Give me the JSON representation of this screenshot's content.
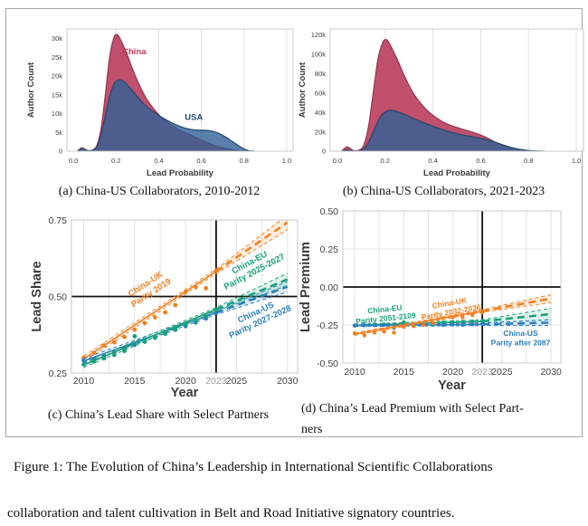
{
  "figure": {
    "caption": "Figure 1: The Evolution of China’s Leadership in International Scientific Collaborations",
    "body_text": "collaboration and talent cultivation in Belt and Road Initiative signatory countries."
  },
  "panels": {
    "a": {
      "caption": "(a) China-US Collaborators, 2010-2012"
    },
    "b": {
      "caption": "(b) China-US Collaborators, 2021-2023"
    },
    "c": {
      "caption": "(c) China’s Lead Share with Select Partners"
    },
    "d": {
      "caption": "(d) China’s Lead Premium with Select Part-\nners"
    }
  },
  "chart_data": [
    {
      "id": "a",
      "type": "area",
      "xlabel": "Lead Probability",
      "ylabel": "Author Count",
      "xlim": [
        -0.03,
        1.03
      ],
      "ylim": [
        0,
        32500
      ],
      "xticks": [
        {
          "v": 0,
          "label": "0.0"
        },
        {
          "v": 0.2,
          "label": "0.2"
        },
        {
          "v": 0.4,
          "label": "0.4"
        },
        {
          "v": 0.6,
          "label": "0.6"
        },
        {
          "v": 0.8,
          "label": "0.8"
        },
        {
          "v": 1,
          "label": "1.0"
        }
      ],
      "yticks": [
        {
          "v": 0,
          "label": "0"
        },
        {
          "v": 5000,
          "label": "5k"
        },
        {
          "v": 10000,
          "label": "10k"
        },
        {
          "v": 15000,
          "label": "15k"
        },
        {
          "v": 20000,
          "label": "20k"
        },
        {
          "v": 25000,
          "label": "25k"
        },
        {
          "v": 30000,
          "label": "30k"
        }
      ],
      "grid_x": [
        0.2,
        0.4,
        0.6,
        0.8,
        1.0
      ],
      "grid_y": [],
      "series": [
        {
          "name": "China",
          "fill": "#c0506b",
          "stroke": "#96354f",
          "x": [
            0.02,
            0.04,
            0.055,
            0.07,
            0.09,
            0.11,
            0.13,
            0.15,
            0.17,
            0.19,
            0.205,
            0.22,
            0.25,
            0.28,
            0.31,
            0.34,
            0.38,
            0.42,
            0.46,
            0.5,
            0.55,
            0.6,
            0.65,
            0.7,
            0.75,
            0.8,
            0.84
          ],
          "y": [
            100,
            900,
            500,
            150,
            300,
            1500,
            6000,
            15000,
            25000,
            30200,
            31000,
            29800,
            26000,
            21500,
            17500,
            14200,
            11000,
            8600,
            6900,
            5600,
            4300,
            3000,
            1800,
            900,
            350,
            80,
            0
          ],
          "label": {
            "text": "China",
            "x": 0.285,
            "y": 25800,
            "color": "#c03a5b"
          }
        },
        {
          "name": "USA",
          "fill": "rgba(47,96,150,0.8)",
          "stroke": "#24476e",
          "x": [
            0.02,
            0.04,
            0.055,
            0.07,
            0.09,
            0.11,
            0.13,
            0.15,
            0.17,
            0.19,
            0.21,
            0.23,
            0.26,
            0.29,
            0.32,
            0.35,
            0.39,
            0.43,
            0.47,
            0.51,
            0.55,
            0.59,
            0.63,
            0.67,
            0.71,
            0.75,
            0.79,
            0.82,
            0.85
          ],
          "y": [
            80,
            700,
            400,
            120,
            250,
            1200,
            4500,
            9500,
            14500,
            17800,
            18900,
            18800,
            17200,
            15200,
            13200,
            11600,
            9900,
            8500,
            7300,
            6400,
            5800,
            5600,
            5500,
            5000,
            3900,
            2400,
            900,
            200,
            0
          ],
          "label": {
            "text": "USA",
            "x": 0.565,
            "y": 8300,
            "color": "#274a79"
          }
        }
      ]
    },
    {
      "id": "b",
      "type": "area",
      "xlabel": "Lead Probability",
      "ylabel": "Author Count",
      "xlim": [
        -0.03,
        1.03
      ],
      "ylim": [
        0,
        126000
      ],
      "xticks": [
        {
          "v": 0,
          "label": "0.0"
        },
        {
          "v": 0.2,
          "label": "0.2"
        },
        {
          "v": 0.4,
          "label": "0.4"
        },
        {
          "v": 0.6,
          "label": "0.6"
        },
        {
          "v": 0.8,
          "label": "0.8"
        },
        {
          "v": 1,
          "label": "1.0"
        }
      ],
      "yticks": [
        {
          "v": 0,
          "label": "0"
        },
        {
          "v": 20000,
          "label": "20k"
        },
        {
          "v": 40000,
          "label": "40k"
        },
        {
          "v": 60000,
          "label": "60k"
        },
        {
          "v": 80000,
          "label": "80k"
        },
        {
          "v": 100000,
          "label": "100k"
        },
        {
          "v": 120000,
          "label": "120k"
        }
      ],
      "grid_x": [
        0.2,
        0.4,
        0.6,
        0.8,
        1.0
      ],
      "grid_y": [],
      "series": [
        {
          "name": "China",
          "fill": "#c0506b",
          "stroke": "#96354f",
          "x": [
            0.02,
            0.04,
            0.055,
            0.07,
            0.09,
            0.11,
            0.13,
            0.15,
            0.17,
            0.19,
            0.205,
            0.22,
            0.25,
            0.28,
            0.31,
            0.34,
            0.38,
            0.42,
            0.46,
            0.5,
            0.54,
            0.58,
            0.62,
            0.66,
            0.7,
            0.74,
            0.78,
            0.82,
            0.86
          ],
          "y": [
            500,
            4500,
            2500,
            600,
            1000,
            6000,
            25000,
            60000,
            95000,
            112000,
            115000,
            110000,
            95000,
            78000,
            63000,
            52000,
            41000,
            33500,
            28000,
            24500,
            21500,
            18500,
            14500,
            9500,
            5500,
            2800,
            1000,
            200,
            0
          ]
        },
        {
          "name": "USA",
          "fill": "rgba(47,96,150,0.8)",
          "stroke": "#24476e",
          "x": [
            0.02,
            0.04,
            0.055,
            0.07,
            0.09,
            0.11,
            0.13,
            0.15,
            0.17,
            0.19,
            0.21,
            0.23,
            0.26,
            0.29,
            0.32,
            0.35,
            0.39,
            0.43,
            0.47,
            0.51,
            0.55,
            0.59,
            0.63,
            0.67,
            0.71,
            0.75,
            0.79,
            0.83,
            0.87
          ],
          "y": [
            100,
            1200,
            700,
            200,
            400,
            2500,
            9000,
            20000,
            31000,
            38500,
            41500,
            42000,
            40000,
            37000,
            33500,
            30500,
            26500,
            23000,
            20000,
            17500,
            15500,
            13800,
            11500,
            8500,
            5200,
            2600,
            1000,
            250,
            0
          ]
        }
      ]
    },
    {
      "id": "c",
      "type": "trend",
      "xlabel": "Year",
      "ylabel": "Lead Share",
      "xlim": [
        2008.8,
        2031
      ],
      "ylim": [
        0.25,
        0.75
      ],
      "xticks": [
        {
          "v": 2010,
          "label": "2010"
        },
        {
          "v": 2015,
          "label": "2015"
        },
        {
          "v": 2020,
          "label": "2020"
        },
        {
          "v": 2023,
          "label": "2023",
          "color": "#9b9b9b"
        },
        {
          "v": 2025,
          "label": "2025"
        },
        {
          "v": 2030,
          "label": "2030"
        }
      ],
      "yticks": [
        {
          "v": 0.25,
          "label": "0.25"
        },
        {
          "v": 0.5,
          "label": "0.50"
        },
        {
          "v": 0.75,
          "label": "0.75"
        }
      ],
      "grid_x": [
        2010,
        2012.5,
        2015,
        2017.5,
        2020,
        2022.5,
        2025,
        2027.5,
        2030
      ],
      "grid_y": [],
      "ref_x": 2023,
      "ref_y": 0.5,
      "series": [
        {
          "name": "China-UK",
          "color": "#f08122",
          "x": [
            2010,
            2011,
            2012,
            2013,
            2014,
            2015,
            2016,
            2017,
            2018,
            2019,
            2020,
            2021,
            2022,
            2023
          ],
          "y": [
            0.3,
            0.316,
            0.34,
            0.35,
            0.368,
            0.392,
            0.413,
            0.432,
            0.448,
            0.472,
            0.515,
            0.53,
            0.527,
            0.585
          ],
          "fit": {
            "x0": 2010,
            "y0": 0.296,
            "x1": 2023,
            "y1": 0.582
          },
          "proj": {
            "x1": 2030,
            "y1": 0.742,
            "ci_start": 0.007,
            "ci_end": 0.024,
            "ci_obs": 0.009
          },
          "annotation": {
            "text": "China-UK\nParity 2019",
            "x": 2016.2,
            "y": 0.533,
            "rotate": -33
          }
        },
        {
          "name": "China-US",
          "color": "#2e80bf",
          "x": [
            2010,
            2011,
            2012,
            2013,
            2014,
            2015,
            2016,
            2017,
            2018,
            2019,
            2020,
            2021,
            2022,
            2023
          ],
          "y": [
            0.291,
            0.295,
            0.306,
            0.317,
            0.33,
            0.342,
            0.355,
            0.367,
            0.379,
            0.391,
            0.403,
            0.415,
            0.428,
            0.446
          ],
          "fit": {
            "x0": 2010,
            "y0": 0.289,
            "x1": 2023,
            "y1": 0.447
          },
          "proj": {
            "x1": 2030,
            "y1": 0.532,
            "ci_start": 0.006,
            "ci_end": 0.017,
            "ci_obs": 0.008
          },
          "annotation": {
            "text": "China-US\nParity 2027-2028",
            "x": 2027.0,
            "y": 0.44,
            "rotate": -25
          }
        },
        {
          "name": "China-EU",
          "color": "#1aa179",
          "x": [
            2010,
            2011,
            2012,
            2013,
            2014,
            2015,
            2016,
            2017,
            2018,
            2019,
            2020,
            2021,
            2022,
            2023
          ],
          "y": [
            0.278,
            0.288,
            0.298,
            0.309,
            0.322,
            0.37,
            0.352,
            0.365,
            0.378,
            0.392,
            0.408,
            0.42,
            0.435,
            0.458
          ],
          "fit": {
            "x0": 2010,
            "y0": 0.276,
            "x1": 2023,
            "y1": 0.458
          },
          "proj": {
            "x1": 2030,
            "y1": 0.556,
            "ci_start": 0.006,
            "ci_end": 0.02,
            "ci_obs": 0.008
          },
          "annotation": {
            "text": "China-EU\nParity 2025-2027",
            "x": 2026.4,
            "y": 0.603,
            "rotate": -28
          }
        }
      ]
    },
    {
      "id": "d",
      "type": "trend",
      "xlabel": "Year",
      "ylabel": "Lead Premium",
      "xlim": [
        2008.8,
        2031
      ],
      "ylim": [
        -0.5,
        0.5
      ],
      "xticks": [
        {
          "v": 2010,
          "label": "2010"
        },
        {
          "v": 2015,
          "label": "2015"
        },
        {
          "v": 2020,
          "label": "2020"
        },
        {
          "v": 2023,
          "label": "2023",
          "color": "#9b9b9b"
        },
        {
          "v": 2025,
          "label": "2025"
        },
        {
          "v": 2030,
          "label": "2030"
        }
      ],
      "yticks": [
        {
          "v": -0.5,
          "label": "-0.50"
        },
        {
          "v": -0.25,
          "label": "-0.25"
        },
        {
          "v": 0,
          "label": "0.00"
        },
        {
          "v": 0.25,
          "label": "0.25"
        },
        {
          "v": 0.5,
          "label": "0.50"
        }
      ],
      "grid_x": [
        2010,
        2012.5,
        2015,
        2017.5,
        2020,
        2022.5,
        2025,
        2027.5,
        2030
      ],
      "grid_y": [
        -0.25,
        0.25
      ],
      "ref_x": 2023,
      "ref_y": 0,
      "series": [
        {
          "name": "China-EU",
          "color": "#1aa179",
          "x": [
            2010,
            2011,
            2012,
            2013,
            2014,
            2015,
            2016,
            2017,
            2018,
            2019,
            2020,
            2021,
            2022,
            2023
          ],
          "y": [
            -0.253,
            -0.25,
            -0.248,
            -0.246,
            -0.249,
            -0.232,
            -0.243,
            -0.24,
            -0.237,
            -0.234,
            -0.231,
            -0.229,
            -0.227,
            -0.224
          ],
          "fit": {
            "x0": 2010,
            "y0": -0.252,
            "x1": 2023,
            "y1": -0.226
          },
          "proj": {
            "x1": 2030,
            "y1": -0.178,
            "ci_start": 0.01,
            "ci_end": 0.038,
            "ci_obs": 0.007
          },
          "annotation": {
            "text": "China-EU\nParity 2051-2109",
            "x": 2013.1,
            "y": -0.163,
            "rotate": -6
          }
        },
        {
          "name": "China-US",
          "color": "#2e80bf",
          "x": [
            2010,
            2011,
            2012,
            2013,
            2014,
            2015,
            2016,
            2017,
            2018,
            2019,
            2020,
            2021,
            2022,
            2023
          ],
          "y": [
            -0.254,
            -0.252,
            -0.251,
            -0.25,
            -0.268,
            -0.247,
            -0.25,
            -0.249,
            -0.248,
            -0.25,
            -0.247,
            -0.249,
            -0.246,
            -0.244
          ],
          "fit": {
            "x0": 2010,
            "y0": -0.254,
            "x1": 2023,
            "y1": -0.246
          },
          "proj": {
            "x1": 2030,
            "y1": -0.234,
            "ci_start": 0.008,
            "ci_end": 0.02,
            "ci_obs": 0.006
          },
          "annotation": {
            "text": "China-US\nParity after 2087",
            "x": 2026.9,
            "y": -0.322,
            "rotate": 0
          }
        },
        {
          "name": "China-UK",
          "color": "#f08122",
          "x": [
            2010,
            2011,
            2012,
            2013,
            2014,
            2015,
            2016,
            2017,
            2018,
            2019,
            2020,
            2021,
            2022,
            2023
          ],
          "y": [
            -0.305,
            -0.318,
            -0.3,
            -0.293,
            -0.3,
            -0.262,
            -0.258,
            -0.25,
            -0.238,
            -0.205,
            -0.198,
            -0.2,
            -0.185,
            -0.168
          ],
          "fit": {
            "x0": 2010,
            "y0": -0.31,
            "x1": 2023,
            "y1": -0.158
          },
          "proj": {
            "x1": 2030,
            "y1": -0.076,
            "ci_start": 0.008,
            "ci_end": 0.026,
            "ci_obs": 0.008
          },
          "annotation": {
            "text": "China-UK\nParity 2032-2036",
            "x": 2019.7,
            "y": -0.122,
            "rotate": -10
          }
        }
      ]
    }
  ]
}
